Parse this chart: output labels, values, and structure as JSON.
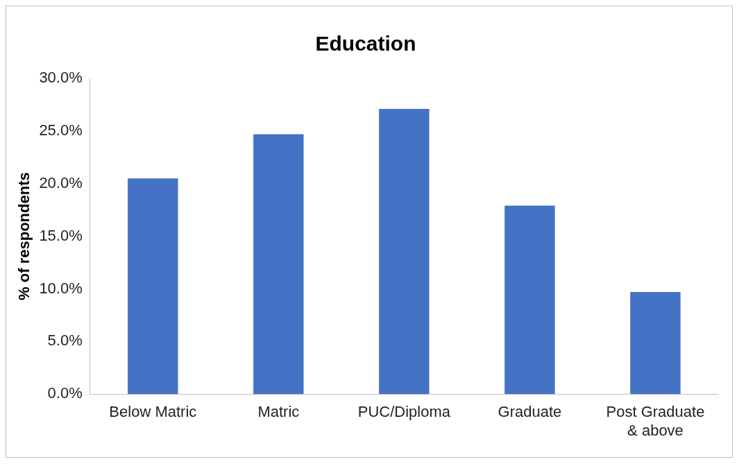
{
  "chart_data": {
    "type": "bar",
    "title": "Education",
    "ylabel": "% of respondents",
    "categories": [
      "Below Matric",
      "Matric",
      "PUC/Diploma",
      "Graduate",
      "Post Graduate & above"
    ],
    "values": [
      20.5,
      24.7,
      27.1,
      17.9,
      9.7
    ],
    "color": "#4472c4",
    "ylim": [
      0,
      30
    ],
    "yticks": [
      {
        "value": 0,
        "label": "0.0%"
      },
      {
        "value": 5,
        "label": "5.0%"
      },
      {
        "value": 10,
        "label": "10.0%"
      },
      {
        "value": 15,
        "label": "15.0%"
      },
      {
        "value": 20,
        "label": "20.0%"
      },
      {
        "value": 25,
        "label": "25.0%"
      },
      {
        "value": 30,
        "label": "30.0%"
      }
    ],
    "grid": false
  }
}
